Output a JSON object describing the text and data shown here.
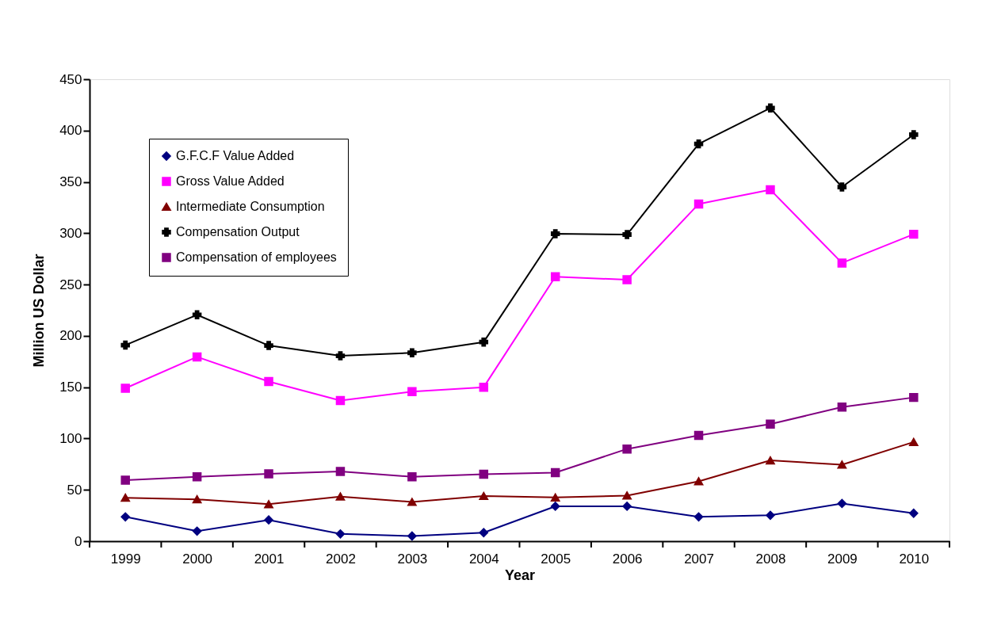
{
  "chart_data": {
    "type": "line",
    "xlabel": "Year",
    "ylabel": "Million US Dollar",
    "categories": [
      "1999",
      "2000",
      "2001",
      "2002",
      "2003",
      "2004",
      "2005",
      "2006",
      "2007",
      "2008",
      "2009",
      "2010"
    ],
    "series": [
      {
        "name": "G.F.C.F Value Added",
        "color": "#000080",
        "marker": "diamond",
        "values": [
          23.7,
          9.8,
          20.7,
          7.1,
          5,
          8.3,
          34,
          34,
          23.7,
          25.2,
          36.7,
          27.2
        ]
      },
      {
        "name": " Gross Value Added",
        "color": "#ff00ff",
        "marker": "square",
        "values": [
          149,
          179.5,
          155.5,
          137,
          145.6,
          150,
          257.6,
          254.7,
          328.5,
          342.4,
          271,
          299
        ]
      },
      {
        "name": "Intermediate Consumption",
        "color": "#800000",
        "marker": "triangle",
        "values": [
          42.3,
          40.8,
          36,
          43.5,
          38.2,
          44,
          42.6,
          44.4,
          58.3,
          78.7,
          74.5,
          96.6
        ]
      },
      {
        "name": "Compensation Output",
        "color": "#000000",
        "marker": "cross",
        "values": [
          191,
          220.5,
          190.6,
          180.6,
          183.5,
          194,
          299.5,
          298.7,
          387,
          422,
          345,
          396
        ]
      },
      {
        "name": "Compensation of employees",
        "color": "#800080",
        "marker": "square",
        "values": [
          59.4,
          62.7,
          65.6,
          68,
          62.7,
          65.3,
          66.8,
          89.8,
          103,
          114,
          130.6,
          140
        ]
      }
    ],
    "ylim": [
      0,
      450
    ],
    "yticks": [
      0,
      50,
      100,
      150,
      200,
      250,
      300,
      350,
      400,
      450
    ],
    "grid": false,
    "legend": "top left",
    "line_style": "solid"
  }
}
